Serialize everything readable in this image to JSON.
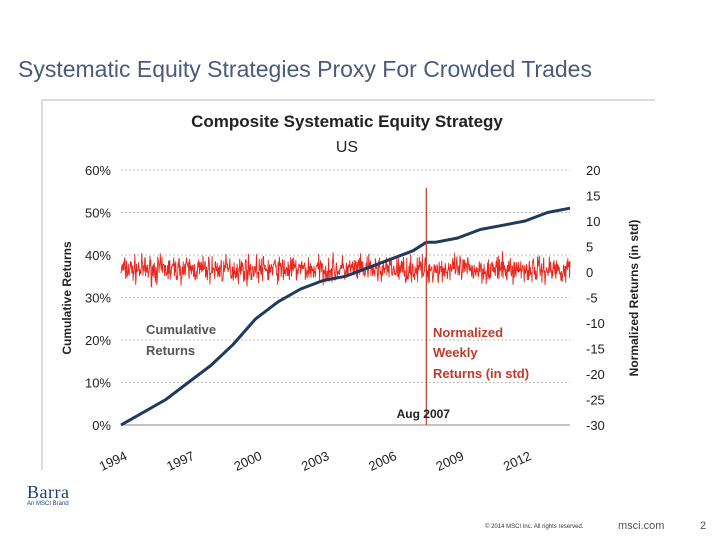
{
  "slide": {
    "title": "Systematic Equity Strategies Proxy For Crowded Trades",
    "footer_copyright": "© 2014 MSCI Inc. All rights reserved.",
    "footer_site": "msci.com",
    "page_number": "2",
    "logo_text": "Barra",
    "logo_subtext": "An MSCI Brand"
  },
  "colors": {
    "cumulative": "#1f3a5f",
    "normalized": "#e8281e",
    "annotation": "#c0392b",
    "axis_text": "#222222",
    "gridline": "#aaaaaa"
  },
  "chart_data": {
    "type": "line",
    "title": "Composite Systematic Equity Strategy",
    "subtitle": "US",
    "ylabel": "Cumulative Returns",
    "y2label": "Normalized Returns (in std)",
    "x_ticks": [
      "1994",
      "1997",
      "2000",
      "2003",
      "2006",
      "2009",
      "2012"
    ],
    "xlim": [
      1994,
      2014
    ],
    "y_ticks": [
      "0%",
      "10%",
      "20%",
      "30%",
      "40%",
      "50%",
      "60%"
    ],
    "ylim": [
      0,
      0.6
    ],
    "y2_ticks": [
      "-30",
      "-25",
      "-20",
      "-15",
      "-10",
      "-5",
      "0",
      "5",
      "10",
      "15",
      "20"
    ],
    "y2lim": [
      -30,
      20
    ],
    "grid": true,
    "annotations": [
      {
        "text": "Cumulative Returns",
        "line1": "Cumulative",
        "line2": "Returns"
      },
      {
        "text": "Normalized Weekly Returns (in std)",
        "line1": "Normalized",
        "line2": "Weekly",
        "line3": "Returns (in std)"
      },
      {
        "text": "Aug 2007",
        "x": 2007.6
      }
    ],
    "series": [
      {
        "name": "Cumulative Returns",
        "axis": "left",
        "x": [
          1994.0,
          1995.0,
          1996.0,
          1997.0,
          1998.0,
          1999.0,
          2000.0,
          2001.0,
          2002.0,
          2003.0,
          2004.0,
          2005.0,
          2006.0,
          2007.0,
          2007.6,
          2008.0,
          2009.0,
          2010.0,
          2011.0,
          2012.0,
          2013.0,
          2014.0
        ],
        "y": [
          0.0,
          0.03,
          0.06,
          0.1,
          0.14,
          0.19,
          0.25,
          0.29,
          0.32,
          0.34,
          0.35,
          0.37,
          0.39,
          0.41,
          0.43,
          0.43,
          0.44,
          0.46,
          0.47,
          0.48,
          0.5,
          0.51
        ]
      },
      {
        "name": "Normalized Weekly Returns (in std)",
        "axis": "right",
        "x_range": [
          1994,
          2014
        ],
        "y_mean": 0.5,
        "y_range": [
          -3,
          6
        ]
      }
    ]
  }
}
